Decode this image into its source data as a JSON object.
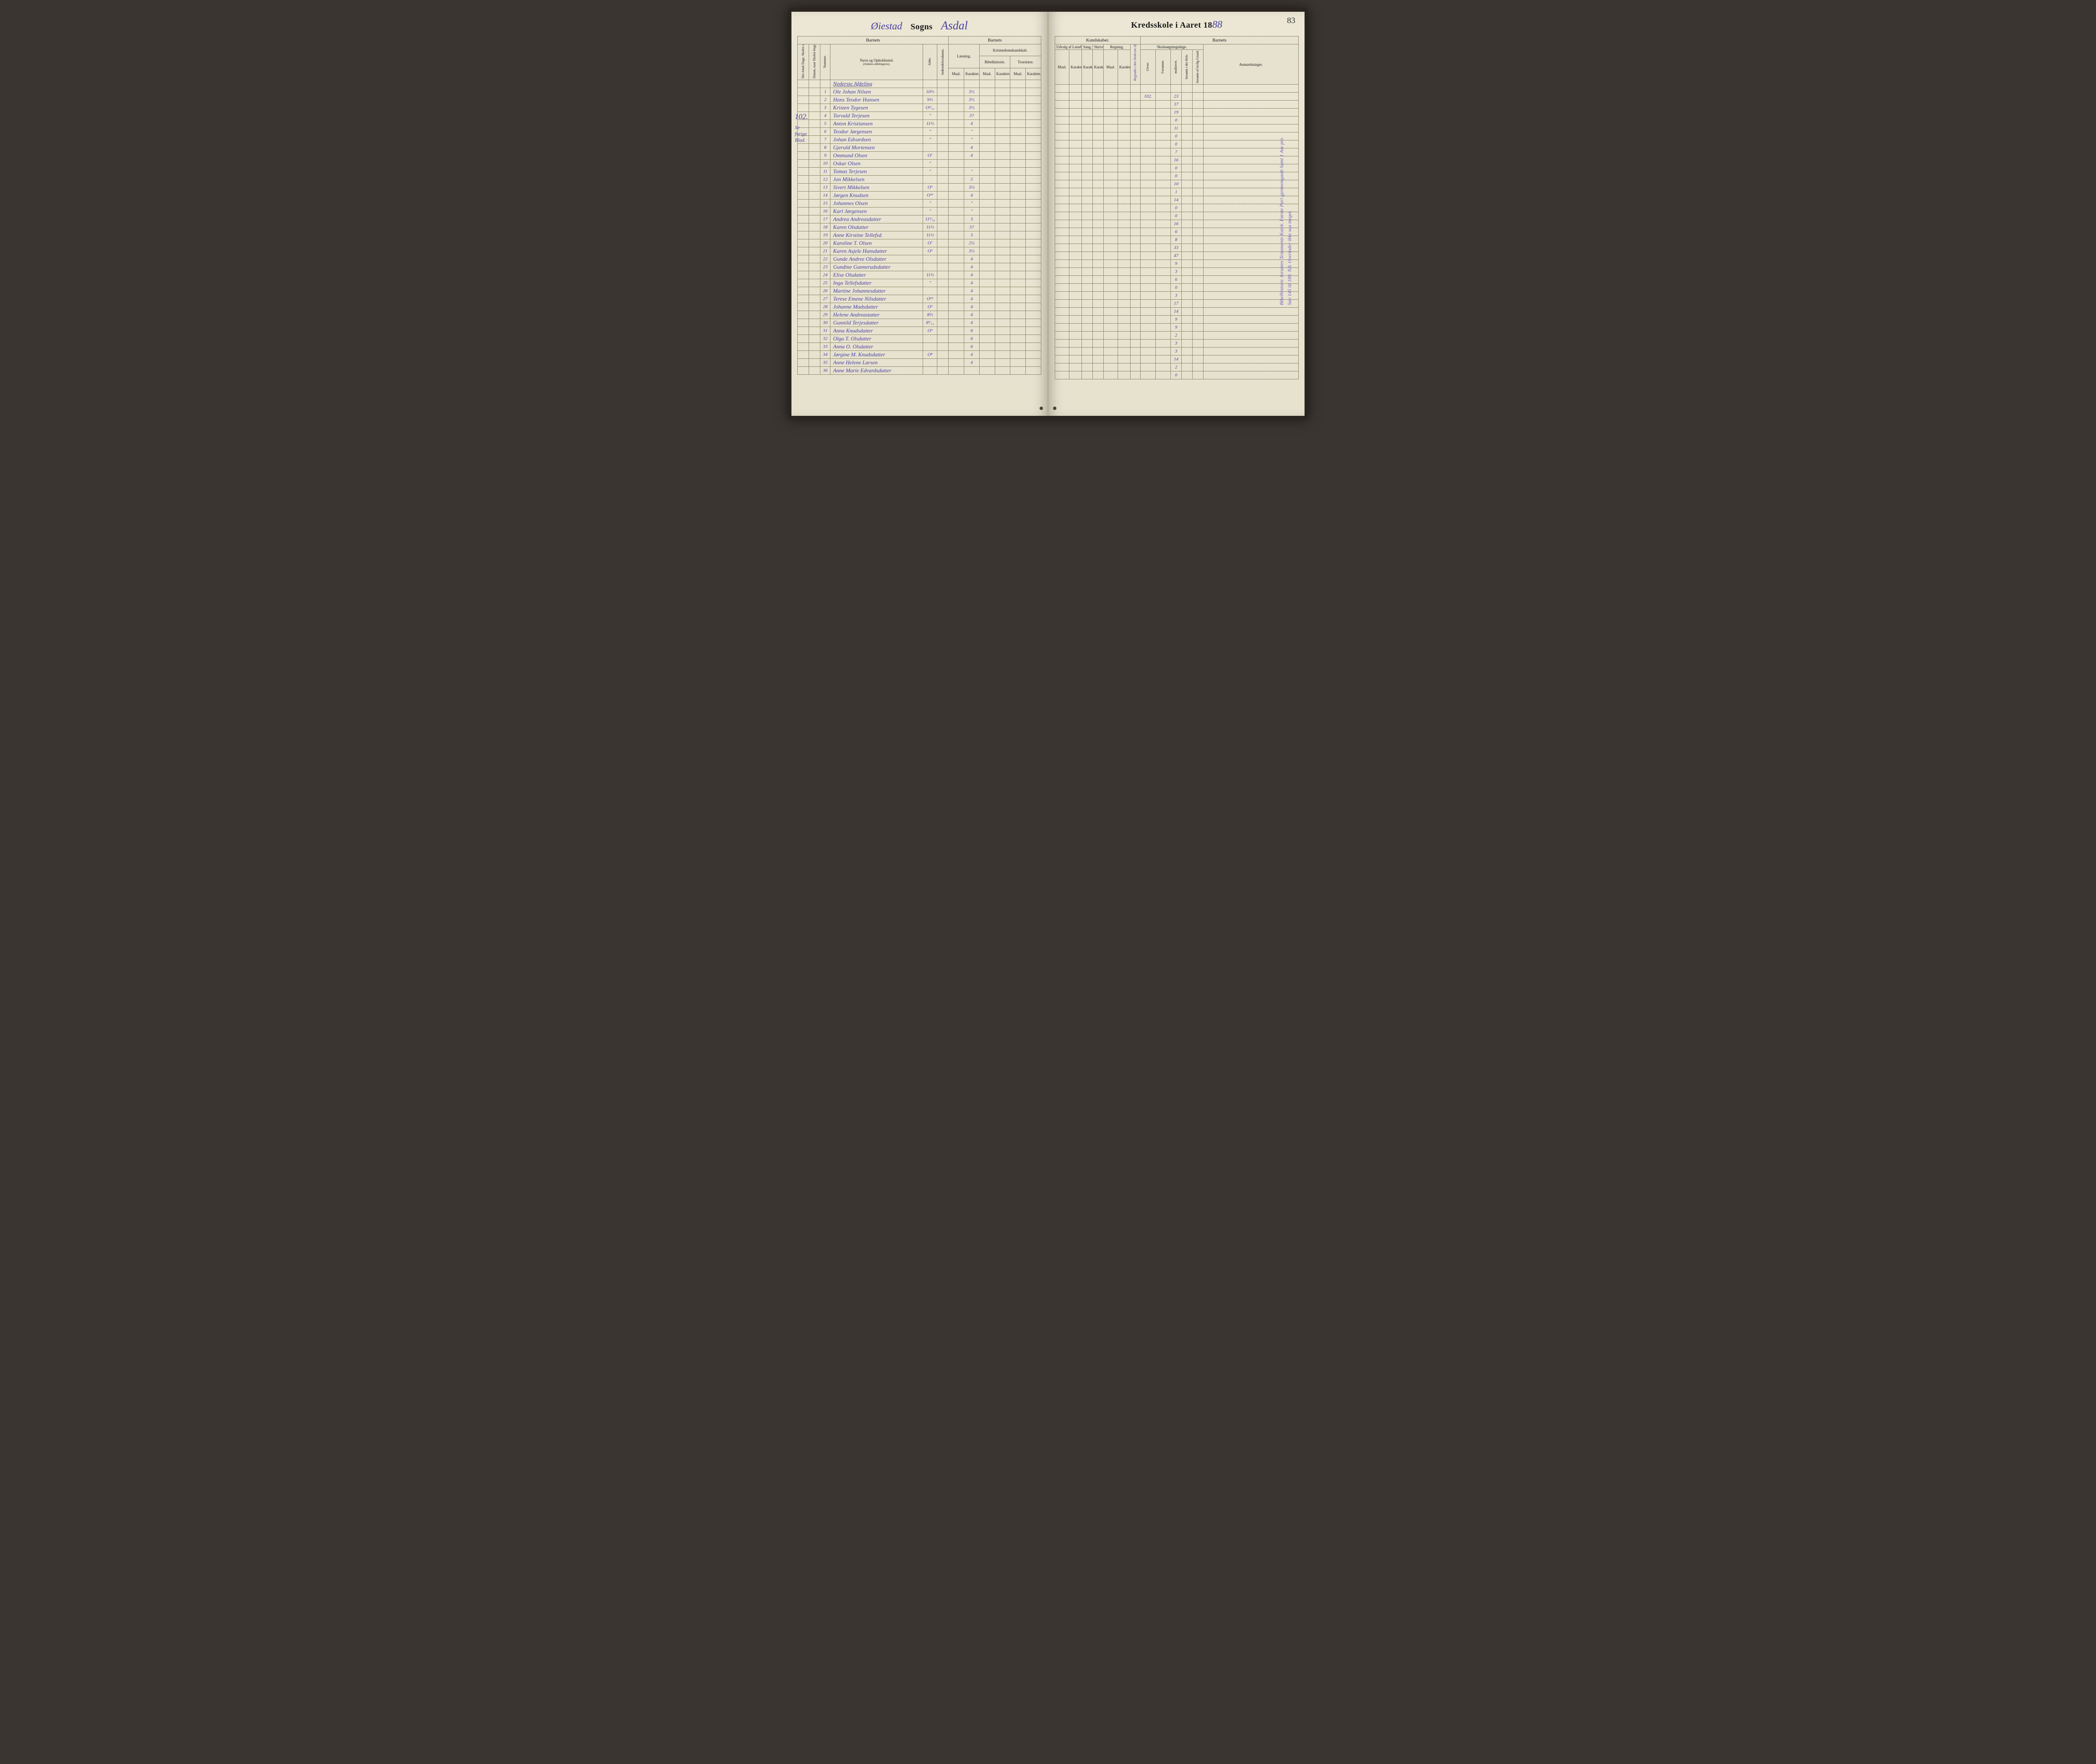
{
  "page_number": "83",
  "colors": {
    "ink": "#4a3fa3",
    "print": "#1a1a1a",
    "rule": "#8a8468",
    "paper": "#e8e4d0"
  },
  "left": {
    "title_script_1": "Øiestad",
    "title_print_1": "Sogns",
    "title_script_2": "Asdal",
    "margin_note": "102.",
    "margin_sub1": "Se",
    "margin_sub2": "forige",
    "margin_sub3": "Blad.",
    "headers": {
      "band_barnets": "Barnets",
      "band_barnets2": "Barnets",
      "h1": "Det Antal Dage, Skolen skal holdes i Kredsen.",
      "h2": "Datum, naar Skolen begynder og slutter hver Omgang.",
      "h3": "Nummer.",
      "h4": "Navn og Opholdssted.",
      "h4sub": "(Anføres afdelingsvis).",
      "h5": "Alder.",
      "h6": "Indtrædelsesdatum.",
      "h7": "Læsning.",
      "h8": "Kristendomskundskab.",
      "h8a": "Bibelhistorie.",
      "h8b": "Troeslære.",
      "sub_maal": "Maal.",
      "sub_kar": "Karakter."
    },
    "section_title": "Nederste Afdeling",
    "rows": [
      {
        "n": "1",
        "name": "Ole Johan Nilsen",
        "age": "10⅔",
        "laes": "3½"
      },
      {
        "n": "2",
        "name": "Hans Teodor Hansen",
        "age": "9⅔",
        "laes": "3½"
      },
      {
        "n": "3",
        "name": "Kristen Tygesen",
        "age": "O⁹⁄₁₂",
        "laes": "3½"
      },
      {
        "n": "4",
        "name": "Torvald Terjesen",
        "age": "\"",
        "laes": "3?"
      },
      {
        "n": "5",
        "name": "Anton Kristiansen",
        "age": "11⅔",
        "laes": "4"
      },
      {
        "n": "6",
        "name": "Teodor Jørgensen",
        "age": "\"",
        "laes": "\""
      },
      {
        "n": "7",
        "name": "Johan Edvardsen",
        "age": "\"",
        "laes": "\""
      },
      {
        "n": "8",
        "name": "Gjeruld Mortensen",
        "age": "",
        "laes": "4"
      },
      {
        "n": "9",
        "name": "Ommund Olsen",
        "age": "O⁷",
        "laes": "4"
      },
      {
        "n": "10",
        "name": "Oskar Olsen",
        "age": "\"",
        "laes": ""
      },
      {
        "n": "11",
        "name": "Tomas Terjesen",
        "age": "\"",
        "laes": "\""
      },
      {
        "n": "12",
        "name": "Jon Mikkelsen",
        "age": "",
        "laes": "5"
      },
      {
        "n": "13",
        "name": "Sivert Mikkelsen",
        "age": "O⁹",
        "laes": "3½"
      },
      {
        "n": "14",
        "name": "Jørgen Knudsen",
        "age": "O⁹⁶",
        "laes": "4"
      },
      {
        "n": "15",
        "name": "Johannes Olsen",
        "age": "\"",
        "laes": "\""
      },
      {
        "n": "16",
        "name": "Karl Jørgensen",
        "age": "\"",
        "laes": "\""
      },
      {
        "n": "17",
        "name": "Andrea Andreasdatter",
        "age": "11⁹⁄₁₀",
        "laes": "3"
      },
      {
        "n": "18",
        "name": "Karen Olsdatter",
        "age": "11⅔",
        "laes": "3?"
      },
      {
        "n": "19",
        "name": "Anne Kirstine Tellefsd.",
        "age": "11⅓",
        "laes": "3"
      },
      {
        "n": "20",
        "name": "Karoline T. Olsen",
        "age": "O⁷",
        "laes": "2½"
      },
      {
        "n": "21",
        "name": "Karen Asjele Hansdatter",
        "age": "O⁹",
        "laes": "3½"
      },
      {
        "n": "22",
        "name": "Gunde Andree Olsdatter",
        "age": "",
        "laes": "4"
      },
      {
        "n": "23",
        "name": "Gundine Gunnerudsdatter",
        "age": "",
        "laes": "4"
      },
      {
        "n": "24",
        "name": "Elise Olsdatter",
        "age": "11⅔",
        "laes": "4"
      },
      {
        "n": "25",
        "name": "Inga Tellefsdatter",
        "age": "\"",
        "laes": "4"
      },
      {
        "n": "26",
        "name": "Martine Johannesdatter",
        "age": "",
        "laes": "4"
      },
      {
        "n": "27",
        "name": "Terese Emene Nilsdatter",
        "age": "O⁹⁵",
        "laes": "4"
      },
      {
        "n": "28",
        "name": "Johanne Madsdatter",
        "age": "O⁹",
        "laes": "4"
      },
      {
        "n": "29",
        "name": "Helene Andreastatter",
        "age": "8⅔",
        "laes": "4"
      },
      {
        "n": "30",
        "name": "Gunnild Terjesdatter",
        "age": "8⁷⁄₁₂",
        "laes": "4"
      },
      {
        "n": "31",
        "name": "Anna Knudsdatter",
        "age": "O⁹",
        "laes": "6"
      },
      {
        "n": "32",
        "name": "Olga T. Olsdatter",
        "age": "",
        "laes": "6"
      },
      {
        "n": "33",
        "name": "Anna O. Olsdatter",
        "age": "",
        "laes": "6"
      },
      {
        "n": "34",
        "name": "Jørgine M. Knudsdatter",
        "age": "O⁸",
        "laes": "4"
      },
      {
        "n": "35",
        "name": "Anne Helene Larsen",
        "age": "",
        "laes": "4"
      },
      {
        "n": "36",
        "name": "Anne Marie Edvardsdatter",
        "age": "",
        "laes": ""
      }
    ]
  },
  "right": {
    "title_print": "Kredsskole i Aaret 18",
    "title_script_year": "88",
    "headers": {
      "band_kund": "Kundskaber.",
      "band_barnets": "Barnets",
      "h_udvalg": "Udvalg af Læsebogen.",
      "h_sang": "Sang.",
      "h_skriv": "Skrivning.",
      "h_regn": "Regning.",
      "h_skole": "Skolesøgningsdage.",
      "h_anm": "Anmærkninger.",
      "sub_maal": "Maal.",
      "sub_kar": "Karakter.",
      "sub_givne": "Givne.",
      "sub_fors": "Forsømte.",
      "sub_mulkt": "mulkteret.",
      "sub_fors2": "forsømt i det Hele.",
      "sub_lov": "forsømt af lovlig Grund.",
      "diag": "Begyndte i den Nederste Afdeling at skrive den"
    },
    "main_value": "102.",
    "side_note": "Bibelhistorie Joruntes Testamente\nKatek. Første Part\ngjennemgaatt\nSamt 1 Ase pro Søn 145 til 180.\nNB. Overinder ikke saa meget.",
    "rows": [
      {
        "g": "23"
      },
      {
        "g": "37"
      },
      {
        "g": "19"
      },
      {
        "g": "0"
      },
      {
        "g": "11"
      },
      {
        "g": "0"
      },
      {
        "g": "0"
      },
      {
        "g": "7"
      },
      {
        "g": "16"
      },
      {
        "g": "0"
      },
      {
        "g": "0"
      },
      {
        "g": "10"
      },
      {
        "g": "1"
      },
      {
        "g": "14"
      },
      {
        "g": "0"
      },
      {
        "g": "0"
      },
      {
        "g": "16"
      },
      {
        "g": "6"
      },
      {
        "g": "8"
      },
      {
        "g": "33"
      },
      {
        "g": "47"
      },
      {
        "g": "9"
      },
      {
        "g": "3"
      },
      {
        "g": "6"
      },
      {
        "g": "0"
      },
      {
        "g": "3"
      },
      {
        "g": "17"
      },
      {
        "g": "14"
      },
      {
        "g": "9"
      },
      {
        "g": "9"
      },
      {
        "g": "2"
      },
      {
        "g": "3"
      },
      {
        "g": "3"
      },
      {
        "g": "14"
      },
      {
        "g": "2"
      },
      {
        "g": "0"
      }
    ]
  }
}
